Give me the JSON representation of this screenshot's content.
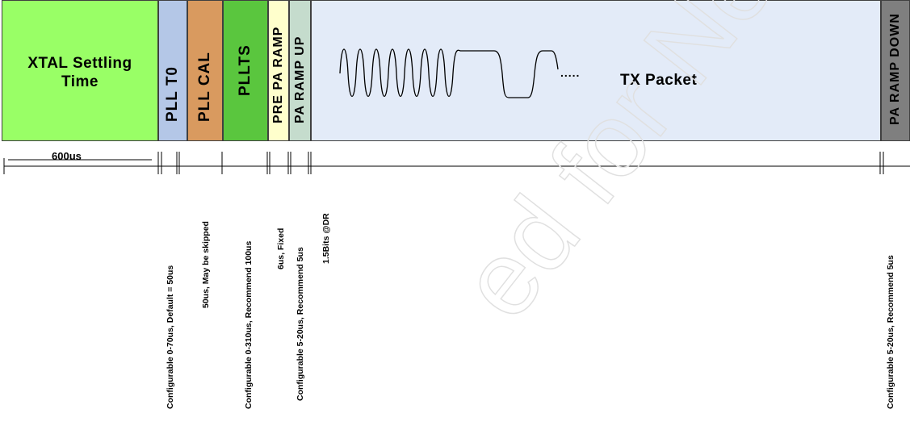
{
  "segments": {
    "xtal": {
      "label": "XTAL Settling Time"
    },
    "pll_t0": {
      "label": "PLL T0"
    },
    "pll_cal": {
      "label": "PLL CAL"
    },
    "pllts": {
      "label": "PLLTS"
    },
    "pre_pa_ramp": {
      "label": "PRE PA RAMP"
    },
    "pa_ramp_up": {
      "label": "PA RAMP UP"
    },
    "tx_packet": {
      "label": "TX Packet"
    },
    "pa_ramp_down": {
      "label": "PA RAMP DOWN"
    }
  },
  "timeline": {
    "xtal_duration": "600us"
  },
  "notes": {
    "pll_t0": "Configurable 0-70us, Default = 50us",
    "pll_cal": "50us, May be skipped",
    "pllts": "Configurable 0-310us, Recommend 100us",
    "pre_pa_ramp": "6us, Fixed",
    "pa_ramp_up": "Configurable 5-20us, Recommend 5us",
    "tx_packet": "1.5Bits @DR",
    "pa_ramp_down": "Configurable 5-20us, Recommend 5us"
  },
  "colors": {
    "xtal": "#99ff66",
    "pll_t0": "#b4c7e7",
    "pll_cal": "#d99a5f",
    "pllts": "#5ac63e",
    "pre_pa_ramp": "#ffffcc",
    "pa_ramp_up": "#c5dccd",
    "tx_packet": "#e3ebf8",
    "pa_ramp_down": "#7f7f7f"
  }
}
